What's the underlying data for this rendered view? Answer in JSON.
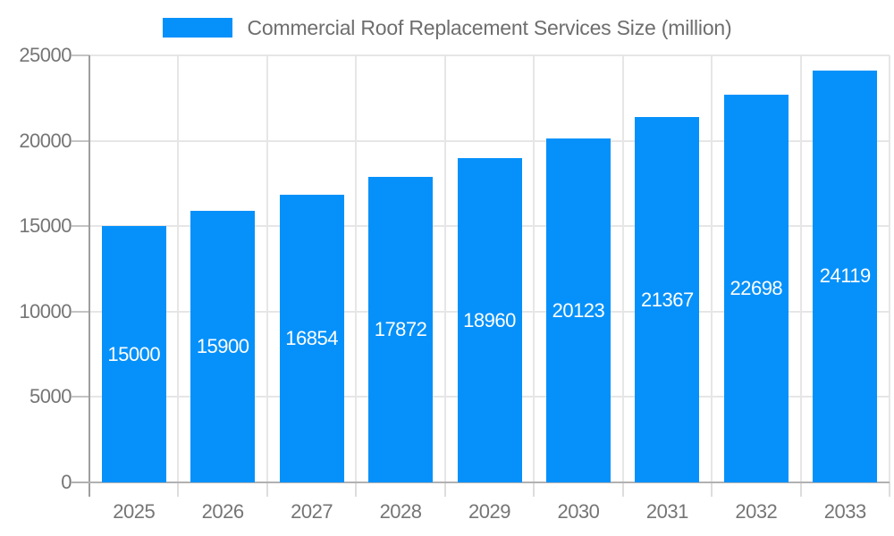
{
  "chart_data": {
    "type": "bar",
    "title": "Commercial Roof Replacement Services Size (million)",
    "series_name": "Commercial Roof Replacement Services Size (million)",
    "categories": [
      "2025",
      "2026",
      "2027",
      "2028",
      "2029",
      "2030",
      "2031",
      "2032",
      "2033"
    ],
    "values": [
      15000,
      15900,
      16854,
      17872,
      18960,
      20123,
      21367,
      22698,
      24119
    ],
    "bar_labels": [
      "15000",
      "15900",
      "16854",
      "17872",
      "18960",
      "20123",
      "21367",
      "22698",
      "24119"
    ],
    "y_ticks": [
      0,
      5000,
      10000,
      15000,
      20000,
      25000
    ],
    "ylim": [
      0,
      25000
    ],
    "xlabel": "",
    "ylabel": "",
    "grid": true,
    "legend_position": "top",
    "colors": {
      "bar": "#0691fa",
      "bar_label": "#ffffff",
      "tick_label": "#757575",
      "title": "#6e6e6e",
      "gridline": "#e6e6e6",
      "y_axis_line": "#9e9e9e",
      "x_axis_line": "#b1b1b1",
      "y_tick_mark": "#c4c4c4",
      "x_tick_mark": "#dddddd",
      "background": "#ffffff"
    }
  }
}
